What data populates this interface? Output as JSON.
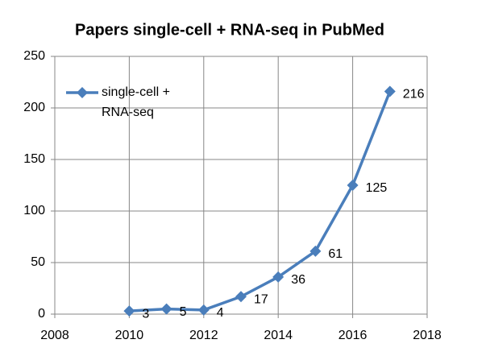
{
  "chart_data": {
    "type": "line",
    "title": "Papers single-cell + RNA-seq in PubMed",
    "x": [
      2010,
      2011,
      2012,
      2013,
      2014,
      2015,
      2016,
      2017
    ],
    "series": [
      {
        "name": "single-cell + RNA-seq",
        "color": "#4a7ebb",
        "values": [
          3,
          5,
          4,
          17,
          36,
          61,
          125,
          216
        ]
      }
    ],
    "xlim": [
      2008,
      2018
    ],
    "xticks": [
      2008,
      2010,
      2012,
      2014,
      2016,
      2018
    ],
    "ylim": [
      0,
      250
    ],
    "yticks": [
      0,
      50,
      100,
      150,
      200,
      250
    ],
    "grid": true,
    "legend": "upper left",
    "data_labels": true
  }
}
